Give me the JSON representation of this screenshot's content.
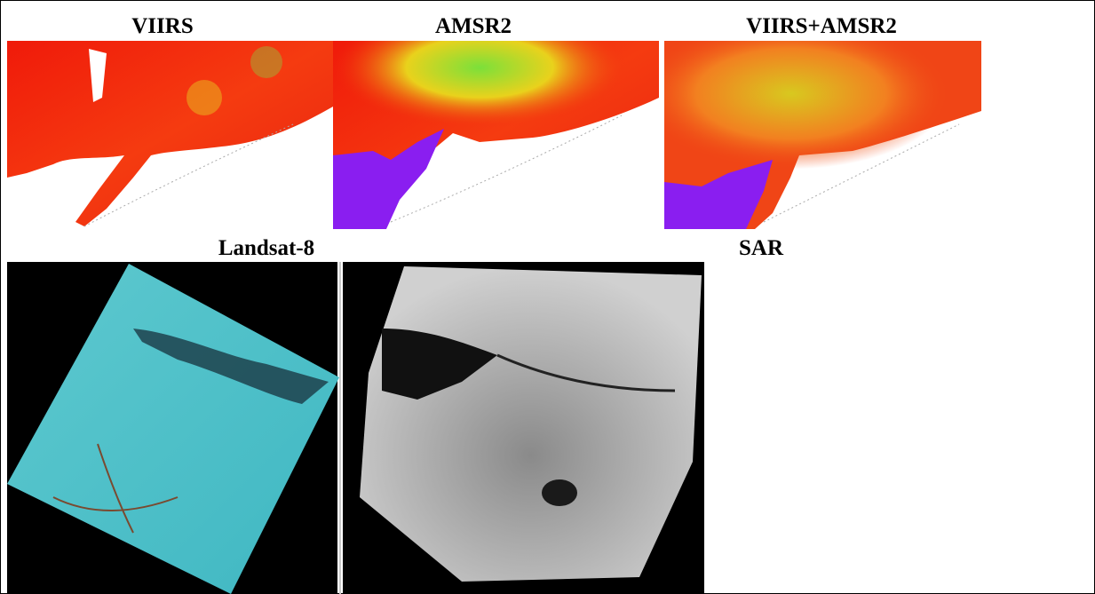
{
  "panels": [
    {
      "label": "VIIRS"
    },
    {
      "label": "AMSR2"
    },
    {
      "label": "VIIRS+AMSR2"
    },
    {
      "label": "Landsat-8"
    },
    {
      "label": "SAR"
    }
  ]
}
